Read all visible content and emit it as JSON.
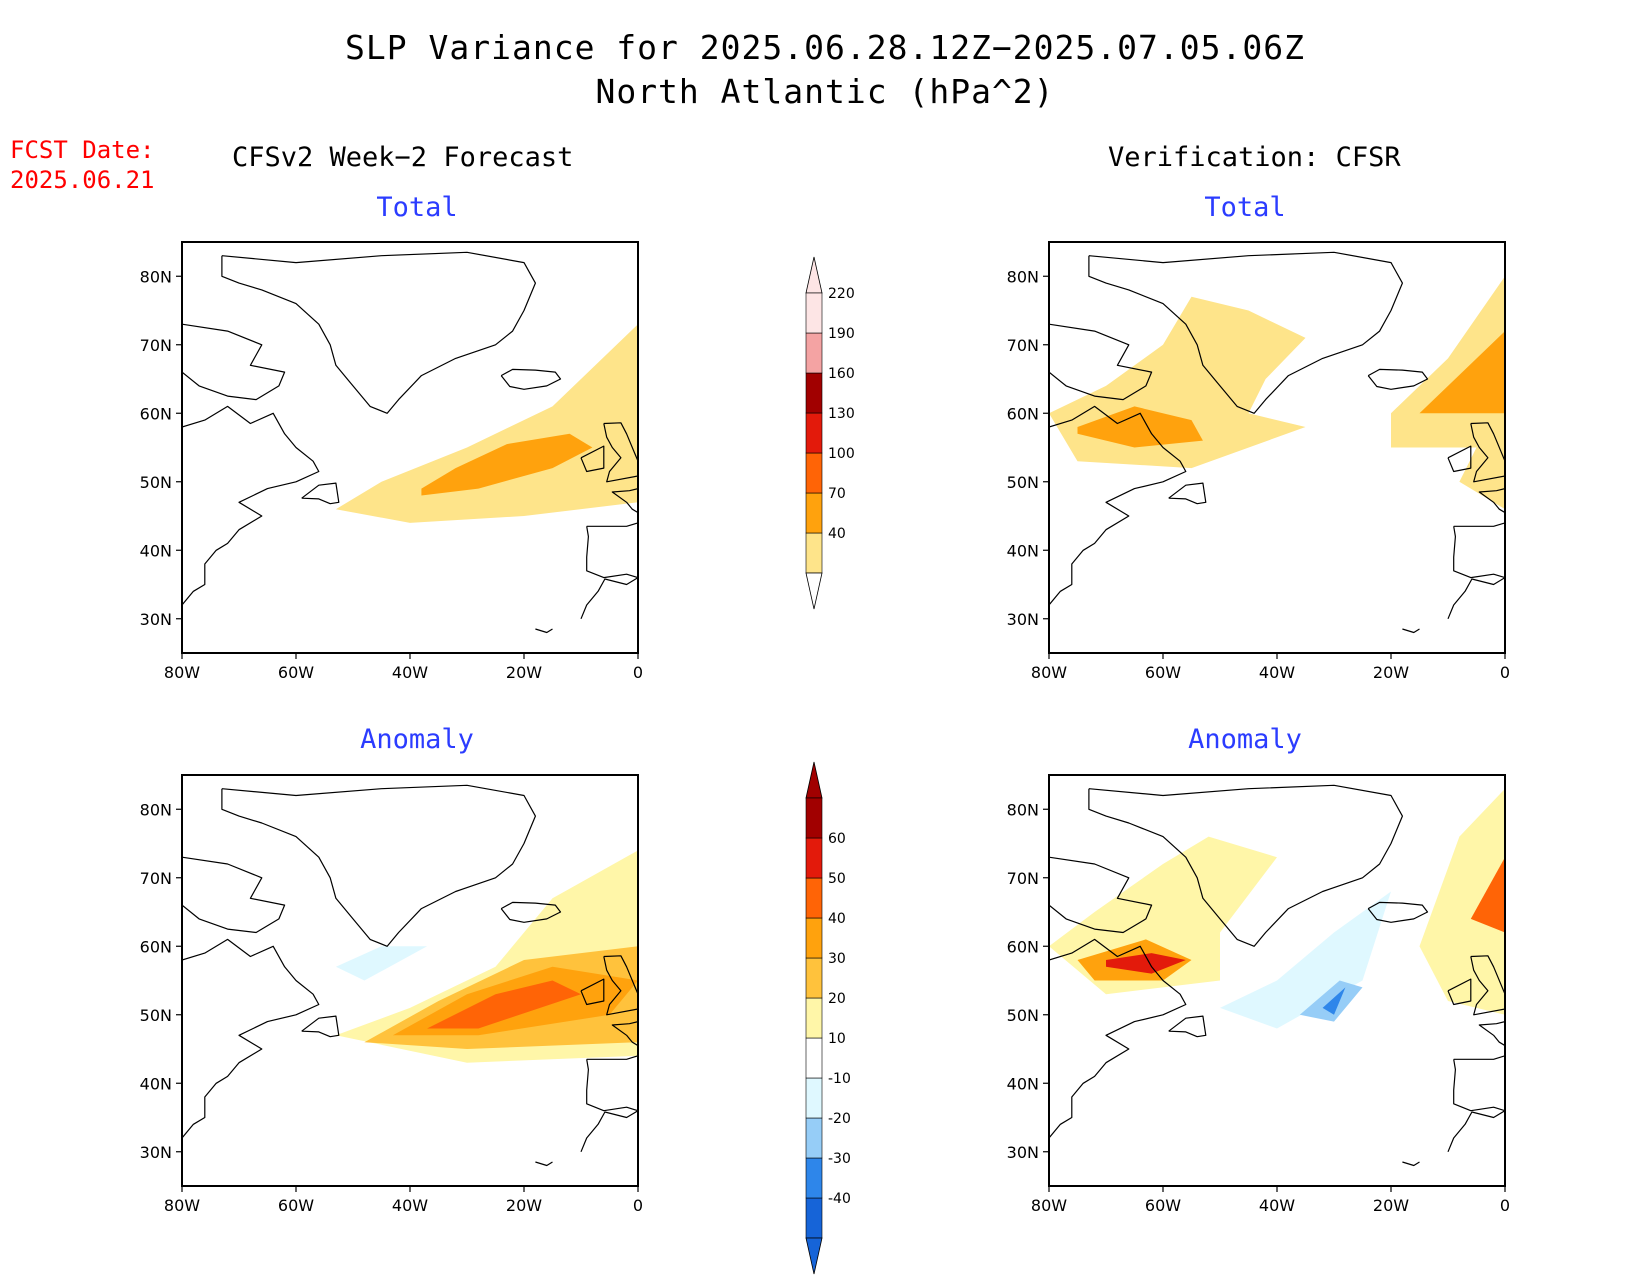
{
  "header": {
    "title_line1": "SLP Variance for 2025.06.28.12Z−2025.07.05.06Z",
    "title_line2": "North Atlantic (hPa^2)",
    "fcst_label": "FCST Date:",
    "fcst_date": "2025.06.21",
    "left_column": "CFSv2 Week−2 Forecast",
    "right_column": "Verification: CFSR"
  },
  "panels": {
    "forecast_total": {
      "title": "Total"
    },
    "verification_total": {
      "title": "Total"
    },
    "forecast_anomaly": {
      "title": "Anomaly"
    },
    "verification_anomaly": {
      "title": "Anomaly"
    }
  },
  "axes": {
    "x_ticks": [
      "80W",
      "60W",
      "40W",
      "20W",
      "0"
    ],
    "y_ticks": [
      "30N",
      "40N",
      "50N",
      "60N",
      "70N",
      "80N"
    ],
    "lon_range": [
      -80,
      0
    ],
    "lat_range": [
      25,
      85
    ]
  },
  "colorbar_total": {
    "labels": [
      "40",
      "70",
      "100",
      "130",
      "160",
      "190",
      "220"
    ],
    "colors": [
      "#fee48a",
      "#ffa20d",
      "#ff6406",
      "#e31a0b",
      "#a10000",
      "#f4a3a3",
      "#fde5e5"
    ]
  },
  "colorbar_anomaly": {
    "labels": [
      "-40",
      "-30",
      "-20",
      "-10",
      "10",
      "20",
      "30",
      "40",
      "50",
      "60"
    ],
    "colors": [
      "#1664d8",
      "#2e86ea",
      "#96cdf7",
      "#dff8ff",
      "#ffffff",
      "#fff6a8",
      "#ffc23c",
      "#ffa20d",
      "#ff6406",
      "#e31a0b",
      "#a10000"
    ]
  },
  "chart_data": [
    {
      "type": "heatmap",
      "title": "Total",
      "column": "CFSv2 Week−2 Forecast",
      "units": "hPa^2",
      "levels": [
        40,
        70,
        100,
        130,
        160,
        190,
        220
      ],
      "regions": [
        {
          "level": 40,
          "description_lonlat": [
            [
              -53,
              46
            ],
            [
              -45,
              50
            ],
            [
              -30,
              55
            ],
            [
              -15,
              61
            ],
            [
              0,
              73
            ],
            [
              0,
              47
            ],
            [
              -20,
              45
            ],
            [
              -40,
              44
            ],
            [
              -53,
              46
            ]
          ]
        },
        {
          "level": 70,
          "description_lonlat": [
            [
              -38,
              49
            ],
            [
              -32,
              52
            ],
            [
              -23,
              55.5
            ],
            [
              -12,
              57
            ],
            [
              -8,
              55
            ],
            [
              -15,
              52
            ],
            [
              -28,
              49
            ],
            [
              -38,
              48
            ],
            [
              -38,
              49
            ]
          ]
        }
      ]
    },
    {
      "type": "heatmap",
      "title": "Total",
      "column": "Verification: CFSR",
      "units": "hPa^2",
      "levels": [
        40,
        70,
        100,
        130,
        160,
        190,
        220
      ],
      "regions": [
        {
          "level": 40,
          "description_lonlat": [
            [
              -80,
              60
            ],
            [
              -70,
              64
            ],
            [
              -60,
              70
            ],
            [
              -55,
              77
            ],
            [
              -45,
              75
            ],
            [
              -35,
              71
            ],
            [
              -42,
              65
            ],
            [
              -45,
              60
            ],
            [
              -35,
              58
            ],
            [
              -55,
              52
            ],
            [
              -75,
              53
            ],
            [
              -80,
              60
            ]
          ]
        },
        {
          "level": 40,
          "description_lonlat": [
            [
              -20,
              60
            ],
            [
              -10,
              68
            ],
            [
              0,
              80
            ],
            [
              0,
              46
            ],
            [
              -8,
              50
            ],
            [
              -5,
              55
            ],
            [
              -20,
              55
            ],
            [
              -20,
              60
            ]
          ]
        },
        {
          "level": 70,
          "description_lonlat": [
            [
              -75,
              58
            ],
            [
              -65,
              61
            ],
            [
              -55,
              59
            ],
            [
              -53,
              56
            ],
            [
              -65,
              55
            ],
            [
              -75,
              57
            ],
            [
              -75,
              58
            ]
          ]
        },
        {
          "level": 70,
          "description_lonlat": [
            [
              -15,
              60
            ],
            [
              0,
              72
            ],
            [
              0,
              60
            ],
            [
              -15,
              60
            ]
          ]
        }
      ]
    },
    {
      "type": "heatmap",
      "title": "Anomaly",
      "column": "CFSv2 Week−2 Forecast",
      "units": "hPa^2",
      "levels": [
        -40,
        -30,
        -20,
        -10,
        10,
        20,
        30,
        40,
        50,
        60
      ],
      "regions": [
        {
          "level": 10,
          "description_lonlat": [
            [
              -53,
              47
            ],
            [
              -40,
              51
            ],
            [
              -25,
              57
            ],
            [
              -15,
              67
            ],
            [
              0,
              74
            ],
            [
              0,
              44
            ],
            [
              -30,
              43
            ],
            [
              -53,
              47
            ]
          ]
        },
        {
          "level": 20,
          "description_lonlat": [
            [
              -48,
              46
            ],
            [
              -35,
              52
            ],
            [
              -20,
              58
            ],
            [
              0,
              60
            ],
            [
              0,
              46
            ],
            [
              -30,
              45
            ],
            [
              -48,
              46
            ]
          ]
        },
        {
          "level": 30,
          "description_lonlat": [
            [
              -43,
              47
            ],
            [
              -30,
              53
            ],
            [
              -15,
              57
            ],
            [
              0,
              55
            ],
            [
              -5,
              50
            ],
            [
              -28,
              47
            ],
            [
              -43,
              47
            ]
          ]
        },
        {
          "level": 40,
          "description_lonlat": [
            [
              -37,
              48
            ],
            [
              -25,
              53
            ],
            [
              -15,
              55
            ],
            [
              -10,
              53
            ],
            [
              -28,
              48
            ],
            [
              -37,
              48
            ]
          ]
        },
        {
          "level": -10,
          "description_lonlat": [
            [
              -53,
              57
            ],
            [
              -45,
              60
            ],
            [
              -37,
              60
            ],
            [
              -48,
              55
            ],
            [
              -53,
              57
            ]
          ]
        }
      ]
    },
    {
      "type": "heatmap",
      "title": "Anomaly",
      "column": "Verification: CFSR",
      "units": "hPa^2",
      "levels": [
        -40,
        -30,
        -20,
        -10,
        10,
        20,
        30,
        40,
        50,
        60
      ],
      "regions": [
        {
          "level": 10,
          "description_lonlat": [
            [
              -80,
              60
            ],
            [
              -72,
              65
            ],
            [
              -60,
              72
            ],
            [
              -52,
              76
            ],
            [
              -40,
              73
            ],
            [
              -50,
              62
            ],
            [
              -50,
              55
            ],
            [
              -70,
              53
            ],
            [
              -80,
              60
            ]
          ]
        },
        {
          "level": 30,
          "description_lonlat": [
            [
              -75,
              58
            ],
            [
              -63,
              61
            ],
            [
              -55,
              58
            ],
            [
              -60,
              55
            ],
            [
              -72,
              55
            ],
            [
              -75,
              58
            ]
          ]
        },
        {
          "level": 50,
          "description_lonlat": [
            [
              -70,
              58
            ],
            [
              -62,
              59
            ],
            [
              -56,
              58
            ],
            [
              -62,
              56
            ],
            [
              -70,
              57
            ],
            [
              -70,
              58
            ]
          ]
        },
        {
          "level": 10,
          "description_lonlat": [
            [
              -15,
              60
            ],
            [
              -8,
              76
            ],
            [
              0,
              83
            ],
            [
              0,
              50
            ],
            [
              -10,
              52
            ],
            [
              -15,
              60
            ]
          ]
        },
        {
          "level": 40,
          "description_lonlat": [
            [
              -6,
              64
            ],
            [
              0,
              73
            ],
            [
              0,
              62
            ],
            [
              -6,
              64
            ]
          ]
        },
        {
          "level": -10,
          "description_lonlat": [
            [
              -50,
              51
            ],
            [
              -40,
              55
            ],
            [
              -30,
              62
            ],
            [
              -20,
              68
            ],
            [
              -25,
              55
            ],
            [
              -40,
              48
            ],
            [
              -50,
              51
            ]
          ]
        },
        {
          "level": -20,
          "description_lonlat": [
            [
              -36,
              50
            ],
            [
              -29,
              55
            ],
            [
              -25,
              54
            ],
            [
              -30,
              49
            ],
            [
              -36,
              50
            ]
          ]
        },
        {
          "level": -30,
          "description_lonlat": [
            [
              -32,
              51
            ],
            [
              -28,
              54
            ],
            [
              -30,
              50
            ],
            [
              -32,
              51
            ]
          ]
        }
      ]
    }
  ]
}
